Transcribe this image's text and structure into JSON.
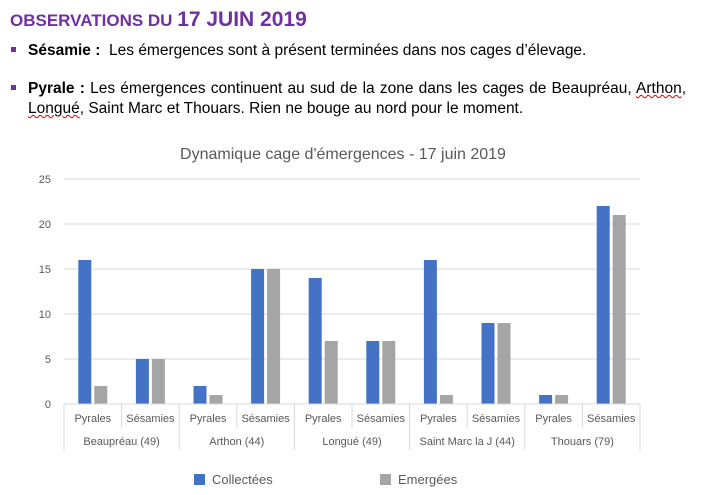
{
  "heading": {
    "part1": "OBSERVATIONS DU ",
    "part2": "17 JUIN 2019"
  },
  "items": [
    {
      "label": "Sésamie :",
      "text": "Les émergences sont à présent terminées dans nos cages d’élevage."
    },
    {
      "label": "Pyrale :",
      "text_a": " Les émergences continuent au sud de la zone dans les cages de Beaupréau, ",
      "town_arthon": "Arthon",
      "sep1": ", ",
      "town_longue": "Longué",
      "text_b": ", Saint Marc et Thouars. Rien ne bouge au nord pour le moment."
    }
  ],
  "colors": {
    "accent": "#7030a0",
    "collectees": "#4472c4",
    "emergees": "#a5a5a5",
    "grid": "#d9d9d9",
    "text": "#595959"
  },
  "chart_data": {
    "type": "bar",
    "title": "Dynamique cage d'émergences - 17 juin 2019",
    "ylim": [
      0,
      25
    ],
    "yticks": [
      0,
      5,
      10,
      15,
      20,
      25
    ],
    "grid": true,
    "legend_position": "bottom",
    "groups": [
      {
        "name": "Beaupréau (49)",
        "categories": [
          "Pyrales",
          "Sésamies"
        ]
      },
      {
        "name": "Arthon (44)",
        "categories": [
          "Pyrales",
          "Sésamies"
        ]
      },
      {
        "name": "Longué (49)",
        "categories": [
          "Pyrales",
          "Sésamies"
        ]
      },
      {
        "name": "Saint Marc la J (44)",
        "categories": [
          "Pyrales",
          "Sésamies"
        ]
      },
      {
        "name": "Thouars (79)",
        "categories": [
          "Pyrales",
          "Sésamies"
        ]
      }
    ],
    "series": [
      {
        "name": "Collectées",
        "color": "#4472c4",
        "values": [
          16,
          5,
          2,
          15,
          14,
          7,
          16,
          9,
          1,
          22
        ]
      },
      {
        "name": "Emergées",
        "color": "#a5a5a5",
        "values": [
          2,
          5,
          1,
          15,
          7,
          7,
          1,
          9,
          1,
          21
        ]
      }
    ]
  }
}
